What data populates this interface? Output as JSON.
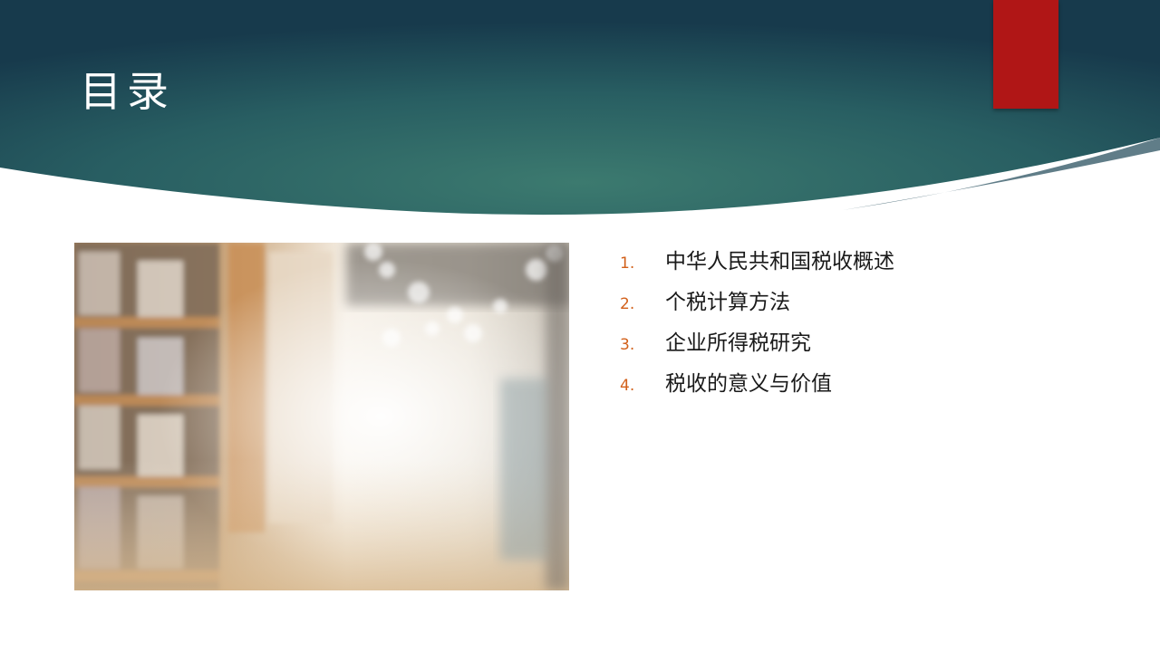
{
  "slide": {
    "title": "目录",
    "accent_color": "#b01616",
    "header_color": "#1e5157",
    "number_color": "#d2601a"
  },
  "photo": {
    "subject": "blurred library bookshelves",
    "icon": "library-photo"
  },
  "toc": {
    "items": [
      {
        "number": "1.",
        "label": "中华人民共和国税收概述"
      },
      {
        "number": "2.",
        "label": "个税计算方法"
      },
      {
        "number": "3.",
        "label": "企业所得税研究"
      },
      {
        "number": "4.",
        "label": "税收的意义与价值"
      }
    ]
  }
}
